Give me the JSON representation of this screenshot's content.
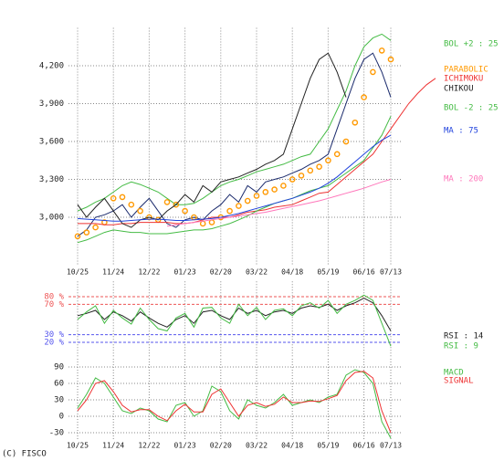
{
  "chart_data": [
    {
      "type": "line",
      "categories": [
        "10/25",
        null,
        null,
        null,
        "11/24",
        null,
        null,
        null,
        "12/22",
        null,
        null,
        null,
        "01/23",
        null,
        null,
        null,
        "02/20",
        null,
        null,
        null,
        "03/22",
        null,
        null,
        null,
        "04/18",
        null,
        null,
        null,
        "05/19",
        null,
        null,
        null,
        "06/16",
        null,
        null,
        "07/13",
        null,
        null,
        null,
        null,
        null
      ],
      "ylim": [
        2620,
        4500
      ],
      "yticks": [
        {
          "value": 3000,
          "label": "3,000"
        },
        {
          "value": 3300,
          "label": "3,300"
        },
        {
          "value": 3600,
          "label": "3,600"
        },
        {
          "value": 3900,
          "label": "3,900"
        },
        {
          "value": 4200,
          "label": "4,200"
        }
      ],
      "grid": true,
      "series": [
        {
          "color": "#1a2a6c",
          "values": [
            2850,
            2900,
            3000,
            3020,
            3050,
            3100,
            3000,
            3080,
            3150,
            3050,
            2950,
            2920,
            2980,
            3000,
            2980,
            3050,
            3100,
            3180,
            3120,
            3250,
            3200,
            3280,
            3300,
            3320,
            3350,
            3380,
            3420,
            3450,
            3500,
            3700,
            3900,
            4100,
            4250,
            4300,
            4150,
            3950,
            null,
            null,
            null,
            null,
            null
          ]
        },
        {
          "name": "BOL +2 : 25",
          "color": "#44bb44",
          "values": [
            3050,
            3080,
            3120,
            3150,
            3200,
            3250,
            3280,
            3260,
            3230,
            3200,
            3150,
            3100,
            3100,
            3110,
            3150,
            3200,
            3250,
            3280,
            3300,
            3330,
            3360,
            3380,
            3400,
            3420,
            3450,
            3480,
            3500,
            3600,
            3700,
            3850,
            4000,
            4200,
            4350,
            4420,
            4450,
            4400,
            null,
            null,
            null,
            null,
            null
          ]
        },
        {
          "name": "PARABOLIC",
          "color": "#ff9900",
          "marker": "o",
          "values": [
            2850,
            2880,
            2920,
            2960,
            3150,
            3160,
            3100,
            3050,
            3000,
            2980,
            3120,
            3100,
            3050,
            3000,
            2950,
            2960,
            3000,
            3050,
            3090,
            3130,
            3170,
            3200,
            3220,
            3250,
            3300,
            3330,
            3370,
            3400,
            3450,
            3500,
            3600,
            3750,
            3950,
            4150,
            4320,
            4250,
            null,
            null,
            null,
            null,
            null
          ]
        },
        {
          "name": "ICHIMOKU",
          "color": "#ee3333",
          "values": [
            2950,
            2950,
            2950,
            2940,
            2940,
            2950,
            2950,
            2960,
            2960,
            2960,
            2960,
            2950,
            2950,
            2960,
            2980,
            3000,
            3000,
            3000,
            3020,
            3040,
            3050,
            3060,
            3080,
            3090,
            3100,
            3130,
            3160,
            3190,
            3200,
            3260,
            3320,
            3380,
            3440,
            3500,
            3600,
            3700,
            3800,
            3900,
            3980,
            4050,
            4100
          ]
        },
        {
          "name": "CHIKOU",
          "color": "#222222",
          "values": [
            3100,
            3000,
            3080,
            3150,
            3050,
            2950,
            2920,
            2980,
            3000,
            2980,
            3050,
            3100,
            3180,
            3120,
            3250,
            3200,
            3280,
            3300,
            3320,
            3350,
            3380,
            3420,
            3450,
            3500,
            3700,
            3900,
            4100,
            4250,
            4300,
            4150,
            3950,
            null,
            null,
            null,
            null,
            null,
            null,
            null,
            null,
            null,
            null
          ]
        },
        {
          "name": "BOL -2 : 25",
          "color": "#44bb44",
          "values": [
            2800,
            2820,
            2850,
            2880,
            2900,
            2890,
            2880,
            2880,
            2870,
            2870,
            2870,
            2880,
            2890,
            2900,
            2900,
            2910,
            2930,
            2950,
            2980,
            3010,
            3050,
            3080,
            3110,
            3130,
            3150,
            3180,
            3210,
            3230,
            3250,
            3300,
            3350,
            3400,
            3450,
            3550,
            3650,
            3800,
            null,
            null,
            null,
            null,
            null
          ]
        },
        {
          "name": "MA : 75",
          "color": "#2244dd",
          "values": [
            2990,
            2985,
            2980,
            2975,
            2970,
            2970,
            2975,
            2980,
            2985,
            2985,
            2980,
            2975,
            2975,
            2980,
            2985,
            2990,
            3000,
            3015,
            3030,
            3050,
            3070,
            3090,
            3110,
            3130,
            3150,
            3175,
            3200,
            3230,
            3270,
            3320,
            3380,
            3440,
            3500,
            3560,
            3610,
            3650,
            null,
            null,
            null,
            null,
            null
          ]
        },
        {
          "name": "MA : 200",
          "color": "#ff77bb",
          "values": [
            null,
            null,
            null,
            null,
            null,
            null,
            null,
            null,
            null,
            null,
            2930,
            2940,
            2950,
            2960,
            2970,
            2980,
            2990,
            3000,
            3010,
            3020,
            3030,
            3040,
            3055,
            3070,
            3085,
            3100,
            3115,
            3130,
            3150,
            3170,
            3190,
            3210,
            3230,
            3255,
            3280,
            3300,
            null,
            null,
            null,
            null,
            null
          ]
        }
      ]
    },
    {
      "type": "line",
      "ylim": [
        0,
        100
      ],
      "yticks": [
        {
          "value": 20,
          "label": "20 %",
          "color": "#5555ee"
        },
        {
          "value": 30,
          "label": "30 %",
          "color": "#5555ee"
        },
        {
          "value": 70,
          "label": "70 %",
          "color": "#ee5555"
        },
        {
          "value": 80,
          "label": "80 %",
          "color": "#ee5555"
        }
      ],
      "series": [
        {
          "name": "RSI : 14",
          "color": "#222222",
          "values": [
            55,
            58,
            62,
            50,
            60,
            55,
            48,
            60,
            52,
            45,
            40,
            50,
            55,
            45,
            60,
            62,
            55,
            50,
            65,
            58,
            62,
            55,
            60,
            62,
            58,
            65,
            68,
            66,
            70,
            62,
            68,
            72,
            78,
            72,
            55,
            35
          ]
        },
        {
          "name": "RSI : 9",
          "color": "#44bb44",
          "values": [
            50,
            60,
            68,
            45,
            62,
            52,
            44,
            65,
            50,
            38,
            35,
            52,
            58,
            40,
            65,
            66,
            52,
            45,
            70,
            55,
            66,
            50,
            62,
            64,
            55,
            68,
            72,
            65,
            75,
            58,
            70,
            75,
            82,
            75,
            45,
            15
          ]
        }
      ]
    },
    {
      "type": "line",
      "categories": [
        "10/25",
        null,
        null,
        null,
        "11/24",
        null,
        null,
        null,
        "12/22",
        null,
        null,
        null,
        "01/23",
        null,
        null,
        null,
        "02/20",
        null,
        null,
        null,
        "03/22",
        null,
        null,
        null,
        "04/18",
        null,
        null,
        null,
        "05/19",
        null,
        null,
        null,
        "06/16",
        null,
        null,
        "07/13"
      ],
      "ylim": [
        -45,
        105
      ],
      "yticks": [
        -30,
        0,
        30,
        60,
        90
      ],
      "grid": true,
      "series": [
        {
          "name": "MACD",
          "color": "#44bb44",
          "values": [
            15,
            40,
            70,
            60,
            35,
            10,
            5,
            15,
            10,
            -5,
            -10,
            20,
            25,
            0,
            10,
            55,
            45,
            10,
            -5,
            30,
            20,
            15,
            25,
            40,
            20,
            25,
            30,
            25,
            35,
            40,
            75,
            85,
            80,
            60,
            -10,
            -40
          ]
        },
        {
          "name": "SIGNAL",
          "color": "#ee3333",
          "values": [
            10,
            30,
            60,
            65,
            45,
            20,
            8,
            12,
            12,
            0,
            -8,
            10,
            22,
            8,
            8,
            40,
            50,
            25,
            0,
            20,
            25,
            18,
            22,
            35,
            25,
            25,
            28,
            27,
            32,
            38,
            65,
            80,
            82,
            70,
            10,
            -30
          ]
        }
      ]
    }
  ],
  "footer": "(C) FISCO"
}
